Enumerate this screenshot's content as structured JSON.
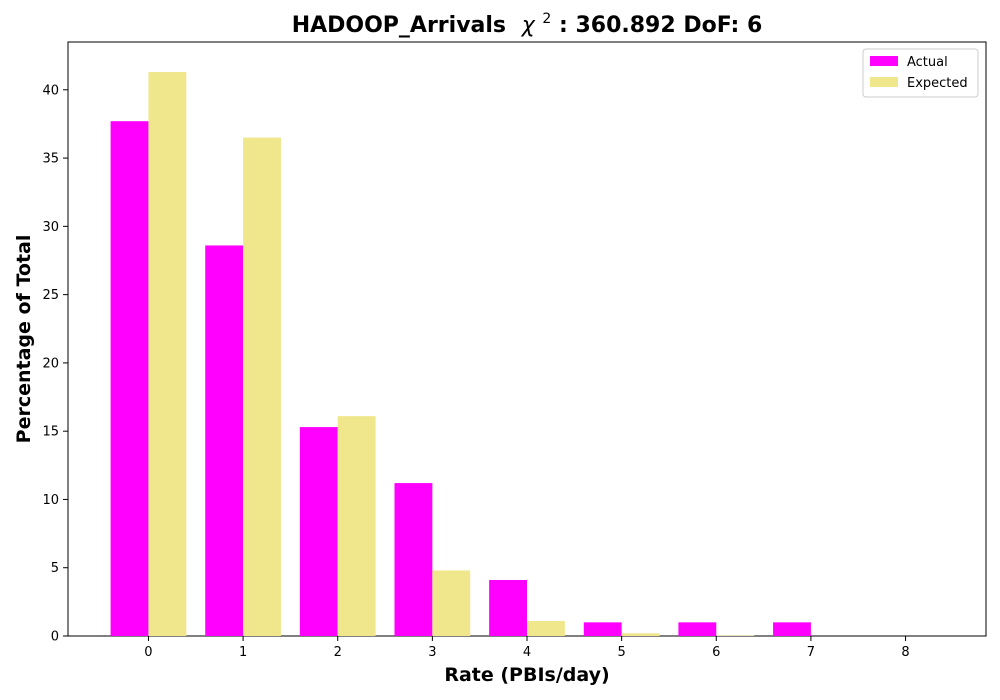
{
  "chart_data": {
    "type": "bar",
    "title": "HADOOP_Arrivals",
    "title_stat_label": "χ",
    "title_stat_exponent": "2",
    "title_stat_value": ": 360.892 DoF: 6",
    "xlabel": "Rate (PBIs/day)",
    "ylabel": "Percentage of Total",
    "categories": [
      "0",
      "1",
      "2",
      "3",
      "4",
      "5",
      "6",
      "7",
      "8"
    ],
    "series": [
      {
        "name": "Actual",
        "color": "#ff00ff",
        "values": [
          37.7,
          28.6,
          15.3,
          11.2,
          4.1,
          1.0,
          1.0,
          1.0,
          0.0
        ]
      },
      {
        "name": "Expected",
        "color": "#f0e68c",
        "values": [
          41.3,
          36.5,
          16.1,
          4.8,
          1.1,
          0.2,
          0.03,
          0.0,
          0.0
        ]
      }
    ],
    "ylim": [
      0,
      43.5
    ],
    "yticks": [
      0,
      5,
      10,
      15,
      20,
      25,
      30,
      35,
      40
    ],
    "grid": false,
    "legend_position": "top-right"
  }
}
